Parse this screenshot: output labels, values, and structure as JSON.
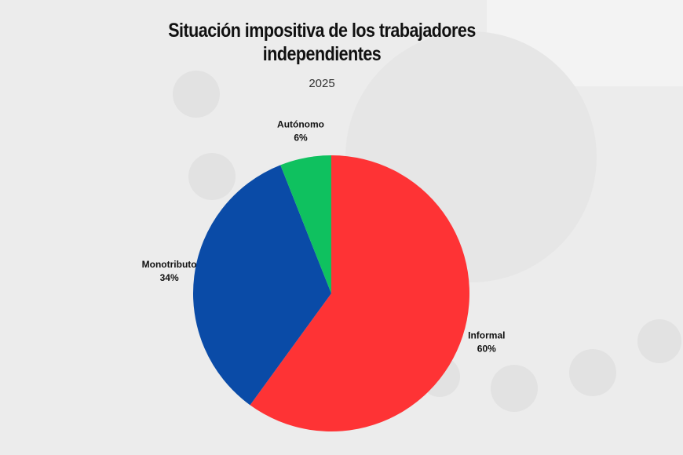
{
  "chart_data": {
    "type": "pie",
    "title": "Situación impositiva de los trabajadores independientes",
    "subtitle": "2025",
    "categories": [
      "Informal",
      "Monotributo",
      "Autónomo"
    ],
    "values": [
      60,
      34,
      6
    ],
    "value_labels": [
      "60%",
      "34%",
      "6%"
    ],
    "colors": [
      "#fe3335",
      "#0a4ba7",
      "#0fc15f"
    ]
  }
}
